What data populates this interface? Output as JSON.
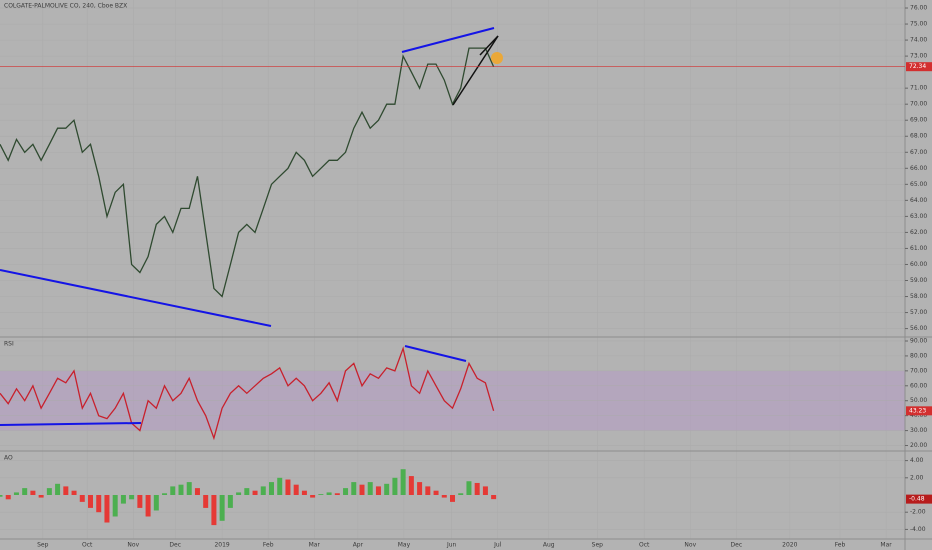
{
  "chart_data": [
    {
      "type": "line",
      "title": "COLGATE-PALMOLIVE CO, 240, Cboe BZX",
      "x": [
        0,
        1,
        2,
        3,
        4,
        5,
        6,
        7,
        8,
        9,
        10,
        11,
        12,
        13,
        14,
        15,
        16,
        17,
        18,
        19,
        20,
        21,
        22,
        23,
        24,
        25,
        26,
        27,
        28,
        29,
        30,
        31,
        32,
        33,
        34,
        35,
        36,
        37,
        38,
        39,
        40,
        41,
        42,
        43,
        44,
        45,
        46,
        47,
        48,
        49,
        50,
        51,
        52,
        53,
        54,
        55,
        56,
        57,
        58,
        59,
        60
      ],
      "series": [
        {
          "name": "COLGATE-PALMOLIVE CO",
          "color": "#2f4a30",
          "values": [
            67.5,
            66.5,
            67.8,
            67,
            67.5,
            66.5,
            67.5,
            68.5,
            68.5,
            69,
            67,
            67.5,
            65.5,
            63,
            64.5,
            65,
            60,
            59.5,
            60.5,
            62.5,
            63,
            62,
            63.5,
            63.5,
            65.5,
            62,
            58.5,
            58,
            60,
            62,
            62.5,
            62,
            63.5,
            65,
            65.5,
            66,
            67,
            66.5,
            65.5,
            66,
            66.5,
            66.5,
            67,
            68.5,
            69.5,
            68.5,
            69,
            70,
            70,
            73,
            72,
            71,
            72.5,
            72.5,
            71.5,
            70,
            71,
            73.5,
            73.5,
            73.5,
            72.34
          ]
        }
      ],
      "last_color": "#d32f2f",
      "xlim": [
        0,
        110
      ],
      "xticks": [
        {
          "value": 5.2,
          "label": "Sep"
        },
        {
          "value": 10.6,
          "label": "Oct"
        },
        {
          "value": 16.2,
          "label": "Nov"
        },
        {
          "value": 21.3,
          "label": "Dec"
        },
        {
          "value": 27,
          "label": "2019"
        },
        {
          "value": 32.6,
          "label": "Feb"
        },
        {
          "value": 38.2,
          "label": "Mar"
        },
        {
          "value": 43.5,
          "label": "Apr"
        },
        {
          "value": 49.1,
          "label": "May"
        },
        {
          "value": 54.9,
          "label": "Jun"
        },
        {
          "value": 60.5,
          "label": "Jul"
        },
        {
          "value": 66.7,
          "label": "Aug"
        },
        {
          "value": 72.6,
          "label": "Sep"
        },
        {
          "value": 78.3,
          "label": "Oct"
        },
        {
          "value": 83.9,
          "label": "Nov"
        },
        {
          "value": 89.5,
          "label": "Dec"
        },
        {
          "value": 96,
          "label": "2020"
        },
        {
          "value": 102.1,
          "label": "Feb"
        },
        {
          "value": 107.7,
          "label": "Mar"
        }
      ],
      "ylim": [
        55.6,
        76.5
      ],
      "yticks": [
        {
          "value": 76,
          "label": "76.00"
        },
        {
          "value": 75,
          "label": "75.00"
        },
        {
          "value": 74,
          "label": "74.00"
        },
        {
          "value": 73,
          "label": "73.00"
        },
        {
          "value": 71,
          "label": "71.00"
        },
        {
          "value": 70,
          "label": "70.00"
        },
        {
          "value": 69,
          "label": "69.00"
        },
        {
          "value": 68,
          "label": "68.00"
        },
        {
          "value": 67,
          "label": "67.00"
        },
        {
          "value": 66,
          "label": "66.00"
        },
        {
          "value": 65,
          "label": "65.00"
        },
        {
          "value": 64,
          "label": "64.00"
        },
        {
          "value": 63,
          "label": "63.00"
        },
        {
          "value": 62,
          "label": "62.00"
        },
        {
          "value": 61,
          "label": "61.00"
        },
        {
          "value": 60,
          "label": "60.00"
        },
        {
          "value": 59,
          "label": "59.00"
        },
        {
          "value": 58,
          "label": "58.00"
        },
        {
          "value": 57,
          "label": "57.00"
        },
        {
          "value": 56,
          "label": "56.00"
        }
      ]
    },
    {
      "type": "line",
      "title": "RSI",
      "series": [
        {
          "name": "RSI",
          "color": "#c8202c",
          "values": [
            55,
            48,
            58,
            50,
            60,
            45,
            55,
            65,
            62,
            70,
            45,
            55,
            40,
            38,
            45,
            55,
            35,
            30,
            50,
            45,
            60,
            50,
            55,
            65,
            50,
            40,
            25,
            45,
            55,
            60,
            55,
            60,
            65,
            68,
            72,
            60,
            65,
            60,
            50,
            55,
            62,
            50,
            70,
            75,
            60,
            68,
            65,
            72,
            70,
            85,
            60,
            55,
            70,
            60,
            50,
            45,
            58,
            75,
            65,
            62,
            43.23
          ]
        }
      ],
      "band": [
        30,
        70
      ],
      "band_color": "#b49ac4",
      "last_color": "#d32f2f",
      "ylim": [
        17,
        92
      ],
      "yticks": [
        {
          "value": 90,
          "label": "90.00"
        },
        {
          "value": 80,
          "label": "80.00"
        },
        {
          "value": 70,
          "label": "70.00"
        },
        {
          "value": 60,
          "label": "60.00"
        },
        {
          "value": 50,
          "label": "50.00"
        },
        {
          "value": 40,
          "label": "40.00"
        },
        {
          "value": 30,
          "label": "30.00"
        },
        {
          "value": 20,
          "label": "20.00"
        }
      ]
    },
    {
      "type": "bar",
      "title": "AO",
      "series": [
        {
          "name": "AO",
          "values": [
            -0.2,
            -0.5,
            0.3,
            0.8,
            0.5,
            -0.3,
            0.8,
            1.3,
            1,
            0.5,
            -0.8,
            -1.5,
            -2,
            -3.2,
            -2.5,
            -1,
            -0.5,
            -1.5,
            -2.5,
            -1.8,
            0.2,
            1,
            1.2,
            1.5,
            0.8,
            -1.5,
            -3.5,
            -3,
            -1.5,
            0.3,
            0.8,
            0.5,
            1,
            1.5,
            2,
            1.8,
            1.2,
            0.5,
            -0.3,
            0.1,
            0.3,
            0.2,
            0.8,
            1.5,
            1.2,
            1.5,
            1,
            1.3,
            2,
            3,
            2.2,
            1.5,
            1,
            0.5,
            -0.3,
            -0.8,
            0.2,
            1.6,
            1.4,
            1,
            -0.48
          ]
        }
      ],
      "up_color": "#4caf50",
      "down_color": "#e53935",
      "last_color": "#b71c1c",
      "ylim": [
        -5,
        5
      ],
      "yticks": [
        {
          "value": 4,
          "label": "4.00"
        },
        {
          "value": 2,
          "label": "2.00"
        },
        {
          "value": -2,
          "label": "-2.00"
        },
        {
          "value": -4,
          "label": "-4.00"
        }
      ]
    }
  ]
}
